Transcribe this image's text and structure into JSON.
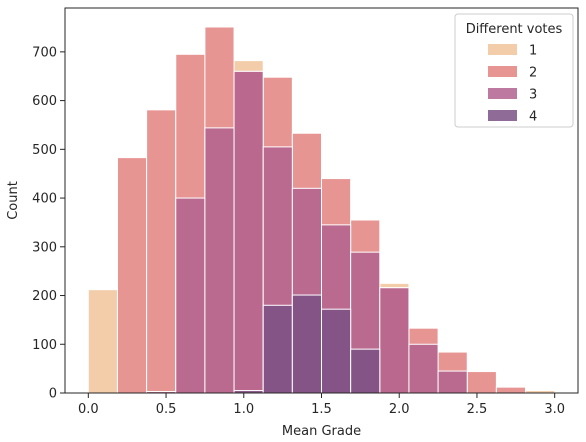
{
  "chart_data": {
    "type": "bar",
    "stacked": false,
    "overlaid_histogram": true,
    "xlabel": "Mean Grade",
    "ylabel": "Count",
    "xlim": [
      -0.15,
      3.15
    ],
    "ylim": [
      0,
      790
    ],
    "xticks": [
      0.0,
      0.5,
      1.0,
      1.5,
      2.0,
      2.5,
      3.0
    ],
    "xtick_labels": [
      "0.0",
      "0.5",
      "1.0",
      "1.5",
      "2.0",
      "2.5",
      "3.0"
    ],
    "yticks": [
      0,
      100,
      200,
      300,
      400,
      500,
      600,
      700
    ],
    "ytick_labels": [
      "0",
      "100",
      "200",
      "300",
      "400",
      "500",
      "600",
      "700"
    ],
    "grid": false,
    "legend": {
      "title": "Different votes",
      "placement": "top-right"
    },
    "bin_edges": [
      0.0,
      0.1875,
      0.375,
      0.5625,
      0.75,
      0.9375,
      1.125,
      1.3125,
      1.5,
      1.6875,
      1.875,
      2.0625,
      2.25,
      2.4375,
      2.625,
      2.8125,
      3.0
    ],
    "series": [
      {
        "name": "1",
        "color": "#f1c39a",
        "values": [
          212,
          0,
          0,
          0,
          0,
          682,
          0,
          0,
          0,
          0,
          225,
          0,
          0,
          0,
          0,
          5
        ]
      },
      {
        "name": "2",
        "color": "#e3837f",
        "values": [
          0,
          483,
          581,
          695,
          751,
          660,
          648,
          533,
          440,
          355,
          216,
          133,
          84,
          44,
          12,
          0
        ]
      },
      {
        "name": "3",
        "color": "#b1628e",
        "values": [
          0,
          0,
          3,
          400,
          544,
          660,
          505,
          420,
          345,
          289,
          216,
          100,
          45,
          0,
          0,
          0
        ]
      },
      {
        "name": "4",
        "color": "#7b5186",
        "values": [
          0,
          0,
          0,
          0,
          0,
          5,
          180,
          201,
          172,
          90,
          0,
          0,
          0,
          0,
          0,
          0
        ]
      }
    ]
  }
}
